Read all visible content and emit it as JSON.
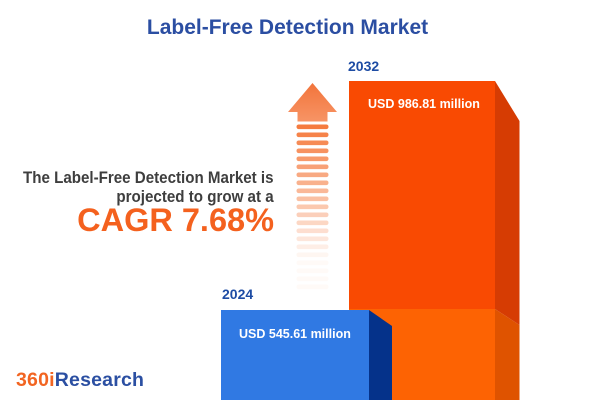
{
  "title": "Label-Free Detection Market",
  "description": {
    "line1": "The Label-Free Detection Market is",
    "line2": "projected to grow at a",
    "cagr": "CAGR 7.68%"
  },
  "chart_data": {
    "type": "bar",
    "categories": [
      "2024",
      "2032"
    ],
    "values": [
      545.61,
      986.81
    ],
    "value_labels": [
      "USD 545.61 million",
      "USD 986.81 million"
    ],
    "unit": "USD million",
    "title": "Label-Free Detection Market",
    "cagr_percent": 7.68,
    "legend": "none",
    "grid": false
  },
  "logo": {
    "part1": "360i",
    "part2": "Research"
  },
  "colors": {
    "title_blue": "#2B4EA2",
    "text_dark": "#3E3E3E",
    "accent_orange": "#F4611E",
    "bar_2032_front": "#F94A02",
    "bar_2032_side": "#D63C03",
    "bar_2032_base_front": "#FD6303",
    "bar_2032_base_side": "#DF5300",
    "bar_2024_front": "#3079E3",
    "bar_2024_side": "#05328A",
    "year_label_blue": "#1E4CA4",
    "bar_label_white": "#FFFFFF",
    "arrow_orange": "#F57B3F",
    "arrow_head_top": "#F2743B",
    "arrow_head_bottom": "#F79465",
    "logo_orange": "#F26522",
    "logo_blue": "#2B4FA2"
  }
}
